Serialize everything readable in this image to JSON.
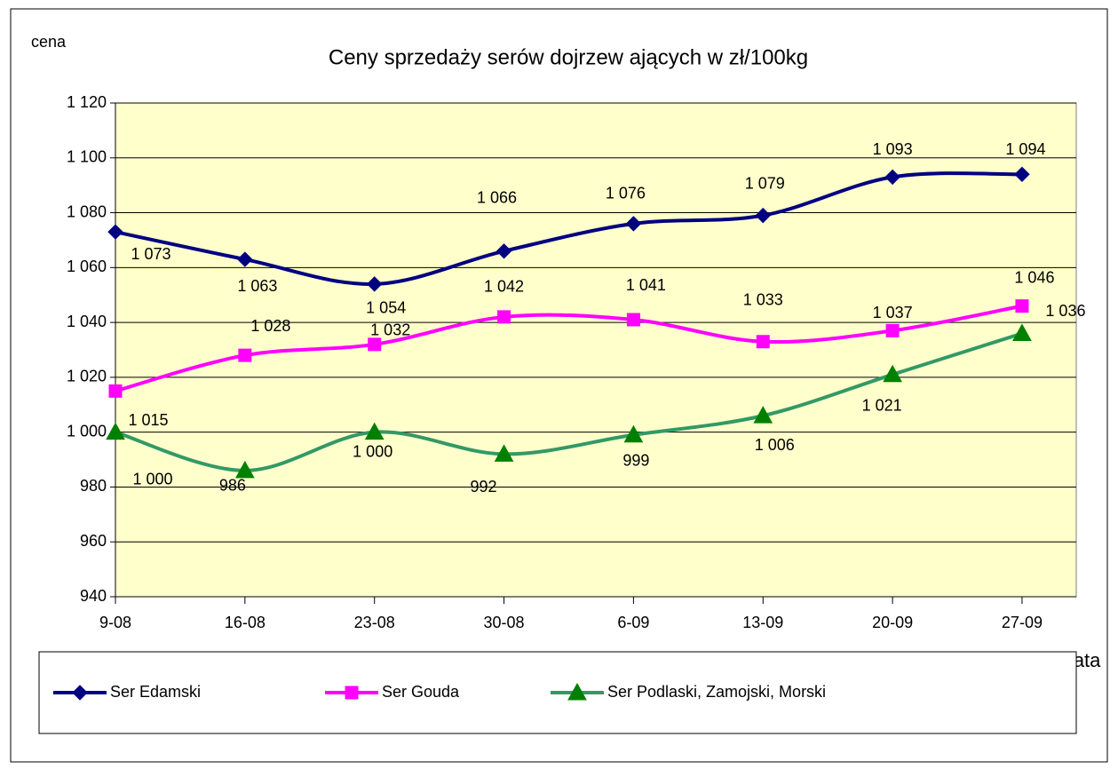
{
  "chart_data": {
    "type": "line",
    "title": "Ceny sprzedaży serów dojrzew ających w zł/100kg",
    "y_label": "cena",
    "x_label": "data",
    "categories": [
      "9-08",
      "16-08",
      "23-08",
      "30-08",
      "6-09",
      "13-09",
      "20-09",
      "27-09"
    ],
    "series": [
      {
        "name": "Ser Edamski",
        "color": "#000080",
        "marker": "diamond",
        "values": [
          1073,
          1063,
          1054,
          1066,
          1076,
          1079,
          1093,
          1094
        ],
        "value_labels": [
          "1 073",
          "1 063",
          "1 054",
          "1 066",
          "1 076",
          "1 079",
          "1 093",
          "1 094"
        ]
      },
      {
        "name": "Ser Gouda",
        "color": "#ff00ff",
        "marker": "square",
        "values": [
          1015,
          1028,
          1032,
          1042,
          1041,
          1033,
          1037,
          1046
        ],
        "value_labels": [
          "1 015",
          "1 028",
          "1 032",
          "1 042",
          "1 041",
          "1 033",
          "1 037",
          "1 046"
        ]
      },
      {
        "name": "Ser Podlaski, Zamojski, Morski",
        "color": "#339966",
        "marker_color": "#008000",
        "marker": "triangle",
        "values": [
          1000,
          986,
          1000,
          992,
          999,
          1006,
          1021,
          1036
        ],
        "value_labels": [
          "1 000",
          "986",
          "1 000",
          "992",
          "999",
          "1 006",
          "1 021",
          "1 036"
        ]
      }
    ],
    "ylim": [
      940,
      1120
    ],
    "yticks": [
      940,
      960,
      980,
      {
        "value": 1000,
        "label": "1 000"
      },
      {
        "value": 1020,
        "label": "1 020"
      },
      {
        "value": 1040,
        "label": "1 040"
      },
      {
        "value": 1060,
        "label": "1 060"
      },
      {
        "value": 1080,
        "label": "1 080"
      },
      {
        "value": 1100,
        "label": "1 100"
      },
      {
        "value": 1120,
        "label": "1 120"
      }
    ],
    "grid": true,
    "legend": "bottom",
    "plot_background": "#ffffcc"
  }
}
